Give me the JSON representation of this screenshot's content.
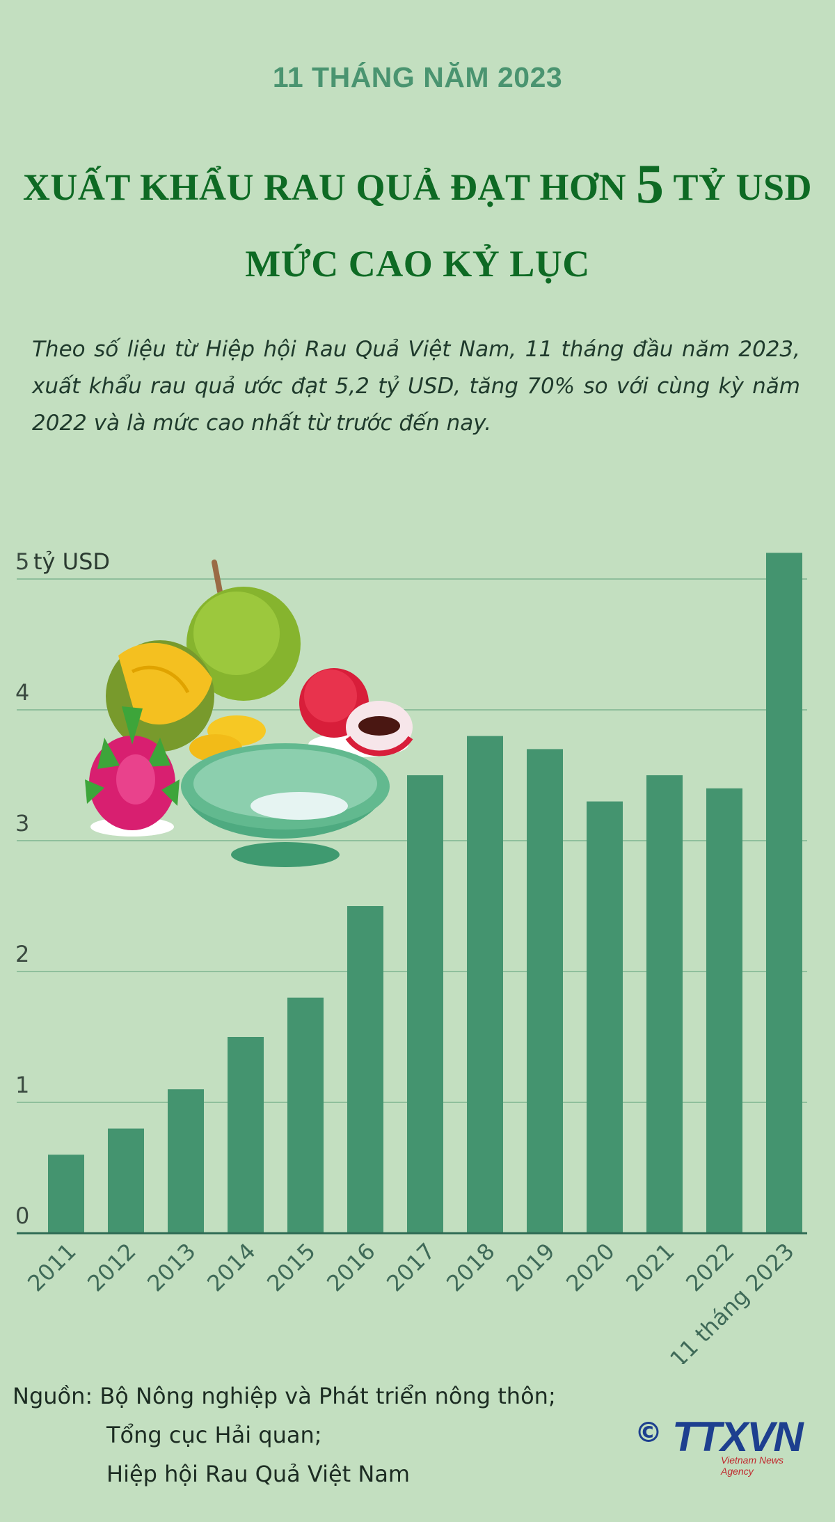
{
  "header": {
    "subtitle": "11 THÁNG NĂM 2023",
    "title_part1": "XUẤT KHẨU RAU QUẢ ĐẠT HƠN ",
    "title_big": "5",
    "title_part2": " TỶ USD",
    "title_line2": "MỨC CAO KỶ LỤC"
  },
  "intro": "Theo số liệu từ Hiệp hội Rau Quả Việt Nam, 11 tháng đầu năm 2023, xuất khẩu rau quả ước đạt 5,2 tỷ USD, tăng 70% so với cùng kỳ năm 2022 và là mức cao nhất từ trước đến nay.",
  "chart_data": {
    "type": "bar",
    "title": "",
    "xlabel": "",
    "ylabel": "tỷ USD",
    "categories": [
      "2011",
      "2012",
      "2013",
      "2014",
      "2015",
      "2016",
      "2017",
      "2018",
      "2019",
      "2020",
      "2021",
      "2022",
      "11 tháng 2023"
    ],
    "values": [
      0.6,
      0.8,
      1.1,
      1.5,
      1.8,
      2.5,
      3.5,
      3.8,
      3.7,
      3.3,
      3.5,
      3.4,
      5.2
    ],
    "yticks": [
      "0",
      "1",
      "2",
      "3",
      "4",
      "5"
    ],
    "ylim": [
      0,
      5
    ],
    "grid": true,
    "bar_color": "#44946f",
    "grid_color": "#8fbf9c"
  },
  "source": {
    "label": "Nguồn:",
    "lines": [
      "Bộ Nông nghiệp và Phát triển nông thôn;",
      "Tổng cục Hải quan;",
      "Hiệp hội Rau Quả Việt Nam"
    ]
  },
  "logo": {
    "copyright": "©",
    "name": "TTXVN",
    "tagline": "Vietnam News Agency"
  },
  "icons": [
    "durian-icon",
    "dragon-fruit-icon",
    "lychee-icon",
    "bowl-icon"
  ]
}
